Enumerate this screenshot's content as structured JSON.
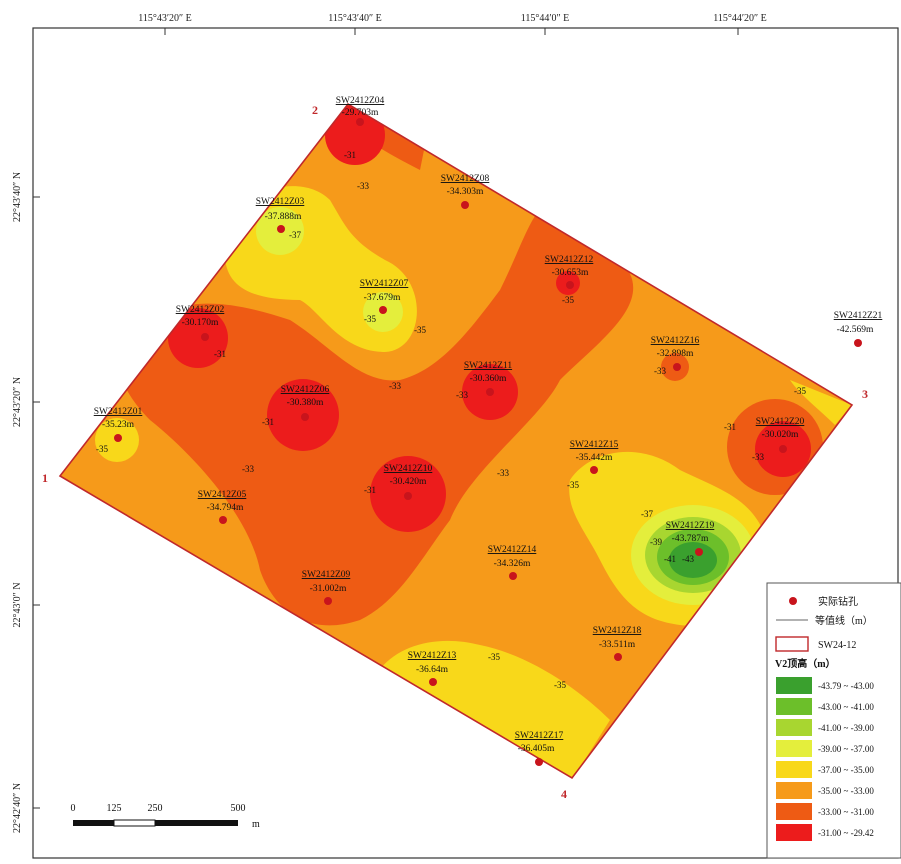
{
  "axes": {
    "top_ticks": [
      "115°43′20″ E",
      "115°43′40″ E",
      "115°44′0″ E",
      "115°44′20″ E"
    ],
    "left_ticks": [
      "22°43′40″ N",
      "22°43′20″ N",
      "22°43′0″ N",
      "22°42′40″ N"
    ]
  },
  "corners": [
    "1",
    "2",
    "3",
    "4"
  ],
  "boreholes": [
    {
      "id": "SW2412Z04",
      "value": "-29.703m"
    },
    {
      "id": "SW2412Z08",
      "value": "-34.303m"
    },
    {
      "id": "SW2412Z03",
      "value": "-37.888m"
    },
    {
      "id": "SW2412Z07",
      "value": "-37.679m"
    },
    {
      "id": "SW2412Z12",
      "value": "-30.653m"
    },
    {
      "id": "SW2412Z02",
      "value": "-30.170m"
    },
    {
      "id": "SW2412Z06",
      "value": "-30.380m"
    },
    {
      "id": "SW2412Z11",
      "value": "-30.360m"
    },
    {
      "id": "SW2412Z16",
      "value": "-32.898m"
    },
    {
      "id": "SW2412Z01",
      "value": "-35.23m"
    },
    {
      "id": "SW2412Z05",
      "value": "-34.794m"
    },
    {
      "id": "SW2412Z10",
      "value": "-30.420m"
    },
    {
      "id": "SW2412Z15",
      "value": "-35.442m"
    },
    {
      "id": "SW2412Z20",
      "value": "-30.020m"
    },
    {
      "id": "SW2412Z21",
      "value": "-42.569m"
    },
    {
      "id": "SW2412Z19",
      "value": "-43.787m"
    },
    {
      "id": "SW2412Z14",
      "value": "-34.326m"
    },
    {
      "id": "SW2412Z09",
      "value": "-31.002m"
    },
    {
      "id": "SW2412Z18",
      "value": "-33.511m"
    },
    {
      "id": "SW2412Z13",
      "value": "-36.64m"
    },
    {
      "id": "SW2412Z17",
      "value": "-36.405m"
    }
  ],
  "contour_labels": [
    "-31",
    "-33",
    "-37",
    "-35",
    "-35",
    "-33",
    "-31",
    "-31",
    "-33",
    "-33",
    "-31",
    "-33",
    "-35",
    "-35",
    "-33",
    "-31",
    "-35",
    "-35",
    "-37",
    "-39",
    "-41",
    "-43",
    "-33",
    "-35",
    "-35"
  ],
  "scale": {
    "labels": [
      "0",
      "125",
      "250",
      "500"
    ],
    "unit": "m"
  },
  "legend": {
    "borehole": "实际钻孔",
    "contour": "等值线（m）",
    "boundary": "SW24-12",
    "title": "V2顶高（m）",
    "classes": [
      {
        "label": "-43.79 ~ -43.00",
        "color": "#3aa02e"
      },
      {
        "label": "-43.00 ~ -41.00",
        "color": "#6cbf2a"
      },
      {
        "label": "-41.00 ~ -39.00",
        "color": "#a8d630"
      },
      {
        "label": "-39.00 ~ -37.00",
        "color": "#e4ee3c"
      },
      {
        "label": "-37.00 ~ -35.00",
        "color": "#f8d81a"
      },
      {
        "label": "-35.00 ~ -33.00",
        "color": "#f69a1a"
      },
      {
        "label": "-33.00 ~ -31.00",
        "color": "#ee5b14"
      },
      {
        "label": "-31.00 ~ -29.42",
        "color": "#ec1c1c"
      }
    ]
  },
  "colors": {
    "boundary": "#c0282b",
    "marker": "#c8141c",
    "frame": "#333333"
  }
}
